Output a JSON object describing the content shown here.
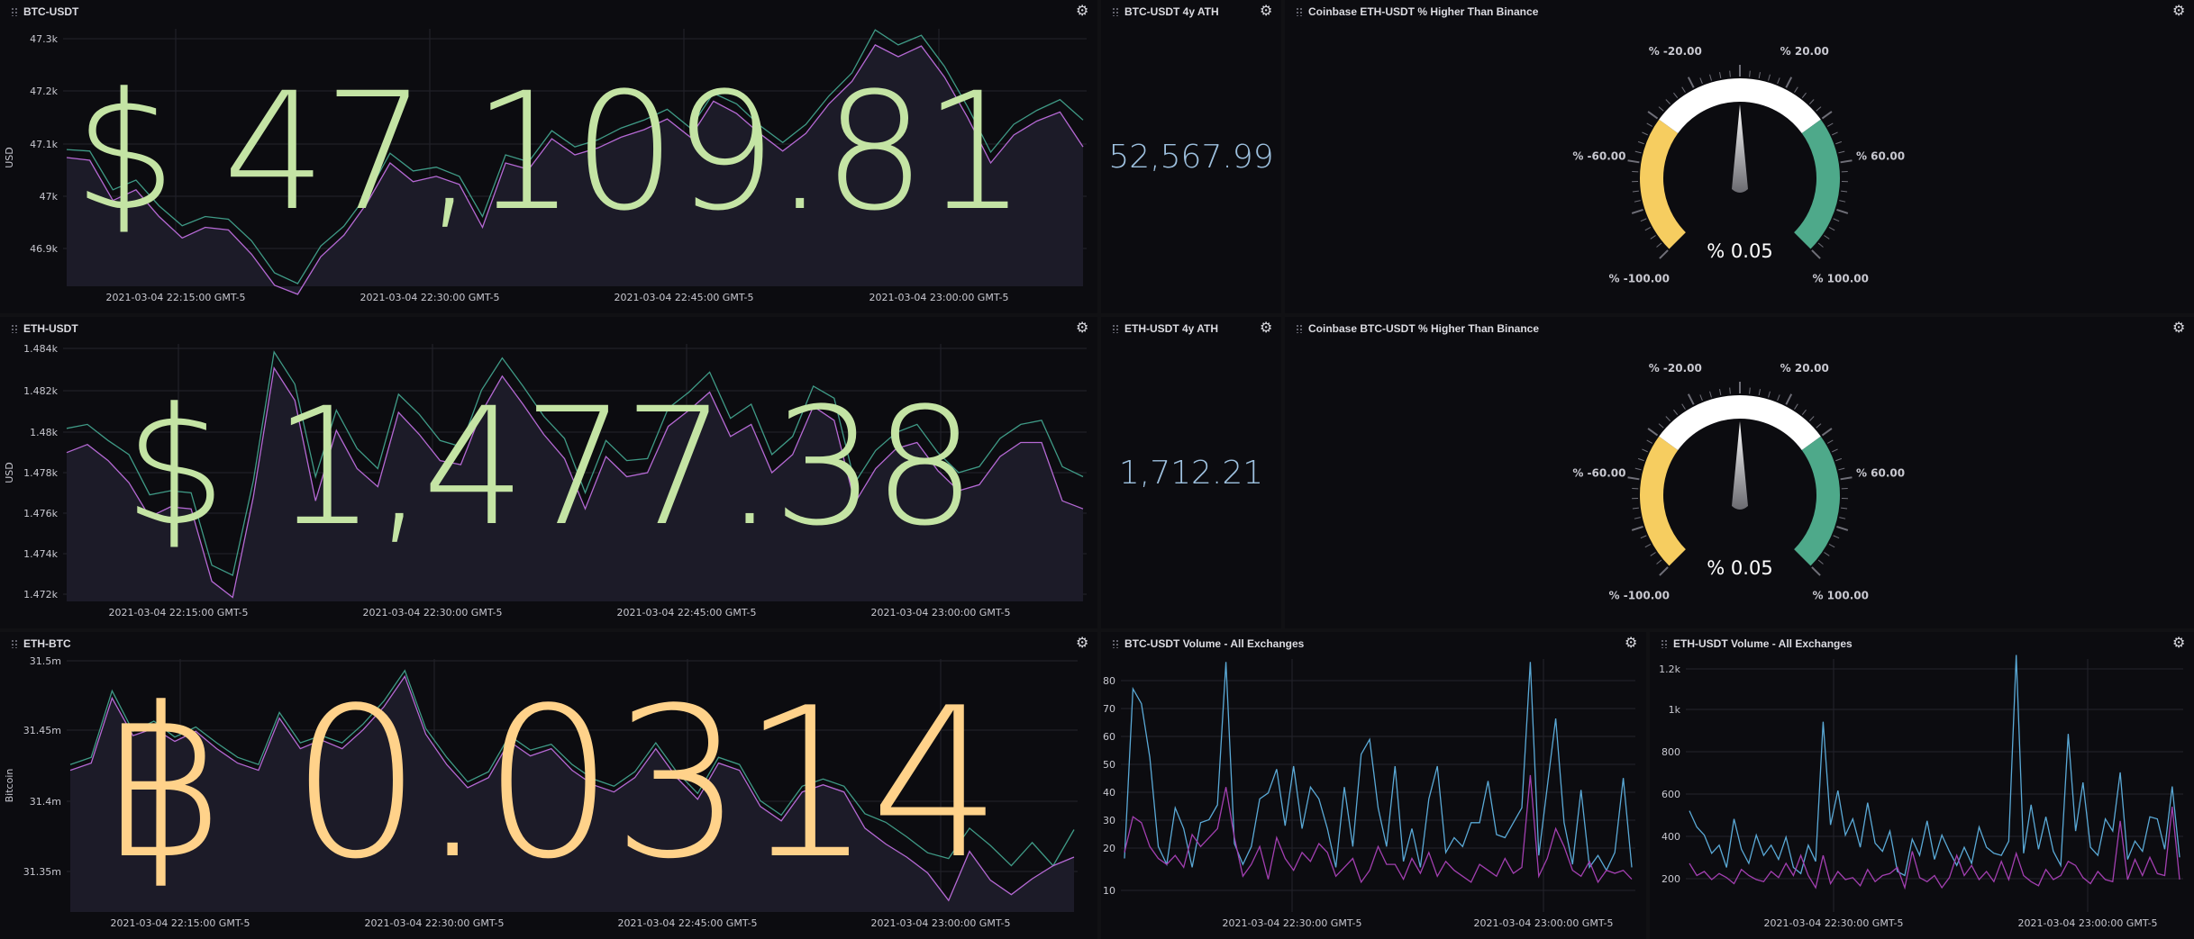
{
  "panels": {
    "btc_usdt": {
      "title": "BTC-USDT",
      "big_value": "$ 47,109.81",
      "ylabel": "USD",
      "yticks": [
        "47.3k",
        "47.2k",
        "47.1k",
        "47k",
        "46.9k"
      ],
      "xticks": [
        "2021-03-04 22:15:00 GMT-5",
        "2021-03-04 22:30:00 GMT-5",
        "2021-03-04 22:45:00 GMT-5",
        "2021-03-04 23:00:00 GMT-5"
      ]
    },
    "btc_ath": {
      "title": "BTC-USDT 4y ATH",
      "value": "52,567.99"
    },
    "eth_gauge": {
      "title": "Coinbase ETH-USDT % Higher Than Binance",
      "labels": [
        "% -100.00",
        "% -60.00",
        "% -20.00",
        "% 20.00",
        "% 60.00",
        "% 100.00"
      ],
      "value": "% 0.05"
    },
    "eth_usdt": {
      "title": "ETH-USDT",
      "big_value": "$ 1,477.38",
      "ylabel": "USD",
      "yticks": [
        "1.484k",
        "1.482k",
        "1.48k",
        "1.478k",
        "1.476k",
        "1.474k",
        "1.472k"
      ],
      "xticks": [
        "2021-03-04 22:15:00 GMT-5",
        "2021-03-04 22:30:00 GMT-5",
        "2021-03-04 22:45:00 GMT-5",
        "2021-03-04 23:00:00 GMT-5"
      ]
    },
    "eth_ath": {
      "title": "ETH-USDT 4y ATH",
      "value": "1,712.21"
    },
    "btc_gauge": {
      "title": "Coinbase BTC-USDT % Higher Than Binance",
      "labels": [
        "% -100.00",
        "% -60.00",
        "% -20.00",
        "% 20.00",
        "% 60.00",
        "% 100.00"
      ],
      "value": "% 0.05"
    },
    "eth_btc": {
      "title": "ETH-BTC",
      "big_value": "฿ 0.0314",
      "ylabel": "Bitcoin",
      "yticks": [
        "31.5m",
        "31.45m",
        "31.4m",
        "31.35m"
      ],
      "xticks": [
        "2021-03-04 22:15:00 GMT-5",
        "2021-03-04 22:30:00 GMT-5",
        "2021-03-04 22:45:00 GMT-5",
        "2021-03-04 23:00:00 GMT-5"
      ]
    },
    "btc_volume": {
      "title": "BTC-USDT Volume - All Exchanges",
      "yticks": [
        "80",
        "70",
        "60",
        "50",
        "40",
        "30",
        "20",
        "10"
      ],
      "xticks": [
        "2021-03-04 22:30:00 GMT-5",
        "2021-03-04 23:00:00 GMT-5"
      ]
    },
    "eth_volume": {
      "title": "ETH-USDT Volume - All Exchanges",
      "yticks": [
        "1.2k",
        "1k",
        "800",
        "600",
        "400",
        "200"
      ],
      "xticks": [
        "2021-03-04 22:30:00 GMT-5",
        "2021-03-04 23:00:00 GMT-5"
      ]
    }
  },
  "colors": {
    "price_line_a": "#3f9a86",
    "price_line_b": "#b569d4",
    "volume_line_a": "#5aa9d6",
    "volume_line_b": "#a23fb0",
    "btc_big": "#c4e4a4",
    "eth_big": "#c4e4a4",
    "ethbtc_big": "#ffd28a",
    "gauge_yellow": "#f6cd60",
    "gauge_white": "#ffffff",
    "gauge_green": "#4ea98a"
  },
  "chart_data": [
    {
      "type": "line",
      "title": "BTC-USDT",
      "ylabel": "USD",
      "ylim": [
        46850,
        47330
      ],
      "series": [
        {
          "values": [
            47105,
            47102,
            47030,
            47048,
            47000,
            46963,
            46980,
            46975,
            46935,
            46875,
            46855,
            46925,
            46962,
            47020,
            47098,
            47065,
            47072,
            47055,
            46980,
            47095,
            47082,
            47140,
            47110,
            47123,
            47145,
            47160,
            47180,
            47145,
            47210,
            47190,
            47150,
            47118,
            47152,
            47205,
            47248,
            47328,
            47300,
            47318,
            47260,
            47185,
            47100,
            47152,
            47178,
            47198,
            47160
          ]
        },
        {
          "values": [
            47090,
            47085,
            47010,
            47030,
            46980,
            46940,
            46960,
            46955,
            46910,
            46852,
            46835,
            46905,
            46945,
            47005,
            47080,
            47045,
            47055,
            47040,
            46960,
            47080,
            47068,
            47125,
            47095,
            47108,
            47128,
            47142,
            47162,
            47128,
            47195,
            47172,
            47135,
            47102,
            47135,
            47190,
            47232,
            47300,
            47278,
            47298,
            47240,
            47165,
            47080,
            47132,
            47158,
            47175,
            47110
          ]
        }
      ]
    },
    {
      "type": "line",
      "title": "ETH-USDT",
      "ylabel": "USD",
      "ylim": [
        1471.6,
        1484.4
      ],
      "series": [
        {
          "values": [
            1480.2,
            1480.4,
            1479.6,
            1478.9,
            1476.9,
            1477.1,
            1477.0,
            1473.4,
            1472.9,
            1477.6,
            1484.0,
            1482.4,
            1477.8,
            1481.1,
            1479.2,
            1478.2,
            1481.9,
            1480.9,
            1479.6,
            1479.3,
            1482.1,
            1483.7,
            1482.3,
            1480.8,
            1479.7,
            1477.0,
            1479.6,
            1478.6,
            1478.7,
            1481.2,
            1482.0,
            1483.0,
            1480.7,
            1481.4,
            1478.9,
            1479.8,
            1482.3,
            1481.7,
            1477.5,
            1479.1,
            1480.0,
            1480.4,
            1479.0,
            1478.0,
            1478.3,
            1479.7,
            1480.4,
            1480.6,
            1478.3,
            1477.8
          ]
        },
        {
          "values": [
            1479.0,
            1479.4,
            1478.6,
            1477.5,
            1475.8,
            1476.3,
            1476.2,
            1472.6,
            1471.8,
            1476.8,
            1483.2,
            1481.6,
            1476.6,
            1480.1,
            1478.2,
            1477.3,
            1481.0,
            1479.9,
            1478.6,
            1478.4,
            1481.0,
            1482.8,
            1481.4,
            1479.9,
            1478.7,
            1476.2,
            1478.8,
            1477.8,
            1478.0,
            1480.3,
            1481.1,
            1482.0,
            1479.8,
            1480.4,
            1478.0,
            1478.9,
            1481.3,
            1480.6,
            1476.5,
            1478.2,
            1479.2,
            1479.5,
            1478.1,
            1477.1,
            1477.4,
            1478.8,
            1479.5,
            1479.5,
            1476.6,
            1476.2
          ]
        }
      ]
    },
    {
      "type": "line",
      "title": "ETH-BTC",
      "ylabel": "Bitcoin",
      "ylim": [
        31.33,
        31.505
      ],
      "series": [
        {
          "values": [
            31.432,
            31.437,
            31.483,
            31.455,
            31.462,
            31.451,
            31.458,
            31.447,
            31.437,
            31.432,
            31.468,
            31.447,
            31.452,
            31.447,
            31.46,
            31.476,
            31.497,
            31.457,
            31.437,
            31.42,
            31.427,
            31.452,
            31.442,
            31.446,
            31.432,
            31.422,
            31.417,
            31.427,
            31.447,
            31.427,
            31.412,
            31.437,
            31.432,
            31.407,
            31.397,
            31.417,
            31.422,
            31.417,
            31.398,
            31.392,
            31.382,
            31.371,
            31.367,
            31.388,
            31.376,
            31.362,
            31.378,
            31.362,
            31.387
          ]
        },
        {
          "values": [
            31.428,
            31.433,
            31.478,
            31.452,
            31.457,
            31.448,
            31.455,
            31.443,
            31.433,
            31.428,
            31.464,
            31.443,
            31.449,
            31.443,
            31.456,
            31.472,
            31.493,
            31.453,
            31.432,
            31.416,
            31.423,
            31.448,
            31.438,
            31.443,
            31.428,
            31.418,
            31.413,
            31.423,
            31.443,
            31.423,
            31.408,
            31.433,
            31.428,
            31.403,
            31.393,
            31.413,
            31.418,
            31.413,
            31.388,
            31.377,
            31.368,
            31.357,
            31.338,
            31.372,
            31.352,
            31.342,
            31.353,
            31.362,
            31.368
          ]
        }
      ]
    },
    {
      "type": "line",
      "title": "BTC-USDT Volume - All Exchanges",
      "ylim": [
        0,
        85
      ],
      "series": [
        {
          "values": [
            18,
            75,
            70,
            52,
            22,
            16,
            35,
            28,
            15,
            30,
            31,
            36,
            84,
            23,
            16,
            22,
            38,
            40,
            48,
            29,
            49,
            28,
            42,
            38,
            28,
            15,
            42,
            22,
            53,
            58,
            35,
            22,
            49,
            17,
            28,
            15,
            38,
            49,
            20,
            25,
            22,
            30,
            30,
            44,
            26,
            25,
            30,
            35,
            84,
            19,
            42,
            65,
            30,
            16,
            41,
            15,
            19,
            14,
            20,
            45,
            15
          ]
        },
        {
          "values": [
            20,
            32,
            30,
            22,
            18,
            16,
            19,
            15,
            26,
            22,
            25,
            28,
            42,
            25,
            12,
            16,
            22,
            11,
            25,
            18,
            14,
            20,
            17,
            23,
            20,
            12,
            15,
            18,
            10,
            14,
            22,
            16,
            16,
            11,
            18,
            13,
            20,
            12,
            17,
            14,
            12,
            10,
            16,
            14,
            12,
            18,
            13,
            15,
            46,
            12,
            18,
            28,
            22,
            14,
            12,
            17,
            10,
            14,
            13,
            14,
            11
          ]
        }
      ]
    },
    {
      "type": "line",
      "title": "ETH-USDT Volume - All Exchanges",
      "ylim": [
        0,
        1250
      ],
      "series": [
        {
          "values": [
            500,
            420,
            380,
            290,
            330,
            220,
            460,
            310,
            240,
            380,
            280,
            330,
            260,
            370,
            220,
            190,
            330,
            250,
            940,
            430,
            600,
            380,
            460,
            320,
            540,
            340,
            300,
            400,
            200,
            180,
            360,
            280,
            450,
            260,
            380,
            300,
            230,
            320,
            240,
            420,
            320,
            290,
            280,
            350,
            1270,
            290,
            530,
            310,
            470,
            300,
            230,
            880,
            400,
            640,
            320,
            280,
            460,
            400,
            690,
            260,
            350,
            300,
            470,
            460,
            310,
            620,
            270
          ]
        },
        {
          "values": [
            240,
            180,
            200,
            160,
            190,
            170,
            140,
            210,
            180,
            160,
            150,
            200,
            170,
            240,
            180,
            280,
            180,
            120,
            280,
            140,
            200,
            160,
            170,
            130,
            210,
            150,
            180,
            190,
            220,
            120,
            300,
            170,
            150,
            180,
            120,
            170,
            280,
            180,
            230,
            160,
            200,
            150,
            250,
            160,
            290,
            180,
            150,
            130,
            210,
            160,
            180,
            250,
            230,
            170,
            140,
            200,
            160,
            150,
            450,
            160,
            260,
            180,
            270,
            190,
            180,
            520,
            160
          ]
        }
      ]
    }
  ]
}
